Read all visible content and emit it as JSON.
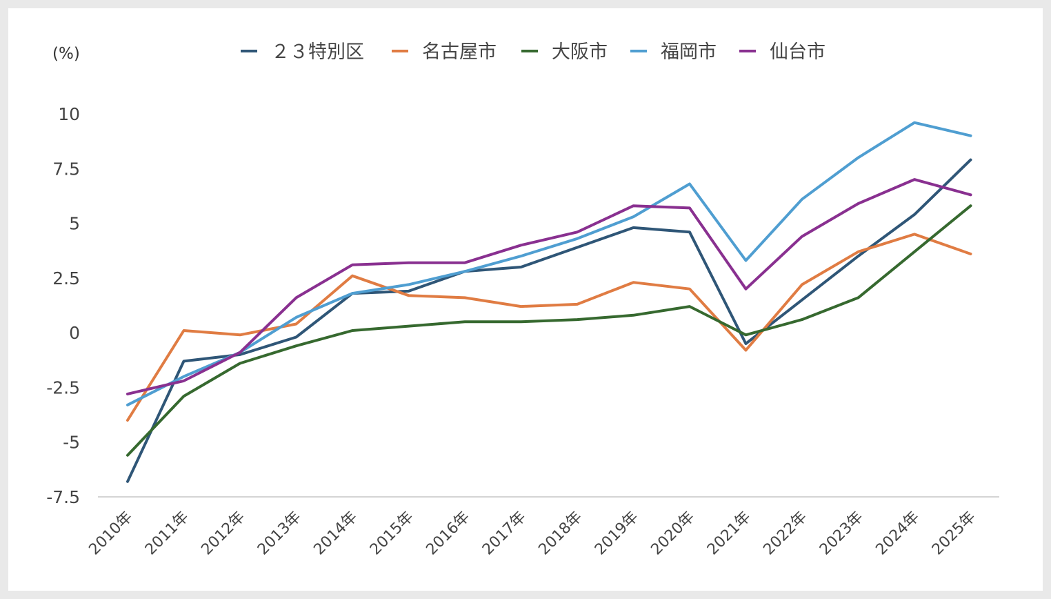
{
  "chart_data": {
    "type": "line",
    "unit_label": "(%)",
    "categories": [
      "2010年",
      "2011年",
      "2012年",
      "2013年",
      "2014年",
      "2015年",
      "2016年",
      "2017年",
      "2018年",
      "2019年",
      "2020年",
      "2021年",
      "2022年",
      "2023年",
      "2024年",
      "2025年"
    ],
    "y_ticks": [
      "10",
      "7.5",
      "5",
      "2.5",
      "0",
      "-2.5",
      "-5",
      "-7.5"
    ],
    "ylim": [
      -7.5,
      10
    ],
    "legend_position": "top-center",
    "grid": false,
    "series": [
      {
        "name": "２３特別区",
        "color": "#2f5677",
        "values": [
          -6.8,
          -1.3,
          -1.0,
          -0.2,
          1.8,
          1.9,
          2.8,
          3.0,
          3.9,
          4.8,
          4.6,
          -0.5,
          1.5,
          3.5,
          5.4,
          7.9
        ]
      },
      {
        "name": "名古屋市",
        "color": "#e07c43",
        "values": [
          -4.0,
          0.1,
          -0.1,
          0.4,
          2.6,
          1.7,
          1.6,
          1.2,
          1.3,
          2.3,
          2.0,
          -0.8,
          2.2,
          3.7,
          4.5,
          3.6
        ]
      },
      {
        "name": "大阪市",
        "color": "#36692f",
        "values": [
          -5.6,
          -2.9,
          -1.4,
          -0.6,
          0.1,
          0.3,
          0.5,
          0.5,
          0.6,
          0.8,
          1.2,
          -0.1,
          0.6,
          1.6,
          3.7,
          5.8
        ]
      },
      {
        "name": "福岡市",
        "color": "#4f9ed1",
        "values": [
          -3.3,
          -2.0,
          -0.9,
          0.7,
          1.8,
          2.2,
          2.8,
          3.5,
          4.3,
          5.3,
          6.8,
          3.3,
          6.1,
          8.0,
          9.6,
          9.0
        ]
      },
      {
        "name": "仙台市",
        "color": "#893090",
        "values": [
          -2.8,
          -2.2,
          -0.9,
          1.6,
          3.1,
          3.2,
          3.2,
          4.0,
          4.6,
          5.8,
          5.7,
          2.0,
          4.4,
          5.9,
          7.0,
          6.3
        ]
      }
    ]
  }
}
